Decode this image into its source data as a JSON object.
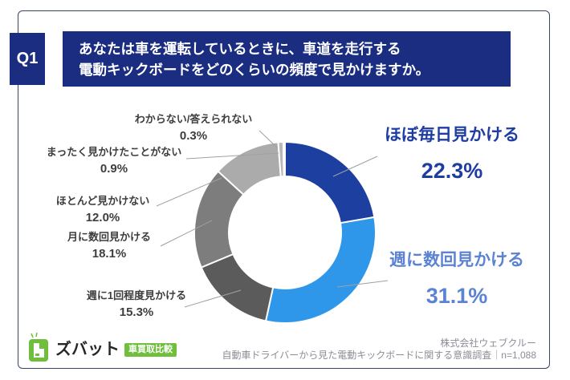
{
  "header": {
    "q_number": "Q1",
    "question_line1": "あなたは車を運転しているときに、車道を走行する",
    "question_line2": "電動キックボードをどのくらいの頻度で見かけますか。"
  },
  "chart_data": {
    "type": "pie",
    "subtype": "donut",
    "title": "あなたは車を運転しているときに、車道を走行する電動キックボードをどのくらいの頻度で見かけますか。",
    "unit": "%",
    "start_angle_deg": 0,
    "clockwise": true,
    "donut_hole_ratio": 0.62,
    "legend_position": "callouts",
    "segments": [
      {
        "label": "ほぼ毎日見かける",
        "value": 22.3,
        "pct_label": "22.3%",
        "color": "#1d3fa0"
      },
      {
        "label": "週に数回見かける",
        "value": 31.1,
        "pct_label": "31.1%",
        "color": "#2f97e9"
      },
      {
        "label": "週に1回程度見かける",
        "value": 15.3,
        "pct_label": "15.3%",
        "color": "#5b5b5b"
      },
      {
        "label": "月に数回見かける",
        "value": 18.1,
        "pct_label": "18.1%",
        "color": "#7d7d7d"
      },
      {
        "label": "ほとんど見かけない",
        "value": 12.0,
        "pct_label": "12.0%",
        "color": "#ababab"
      },
      {
        "label": "まったく見かけたことがない",
        "value": 0.9,
        "pct_label": "0.9%",
        "color": "#b8b8b8"
      },
      {
        "label": "わからない/答えられない",
        "value": 0.3,
        "pct_label": "0.3%",
        "color": "#d9d9d9"
      }
    ]
  },
  "footer": {
    "brand_name": "ズバット",
    "brand_badge": "車買取比較",
    "source_company": "株式会社ウェブクルー",
    "source_description": "自動車ドライバーから見た電動キックボードに関する意識調査｜n=1,088"
  },
  "colors": {
    "header_bg": "#1b2d80",
    "frame_border": "#3a4468",
    "highlight_primary": "#1e3da2",
    "highlight_secondary": "#5b82d3",
    "leader_line": "#9ca1a8",
    "brand_green": "#6fbf3c",
    "footer_text": "#8d8d97"
  }
}
